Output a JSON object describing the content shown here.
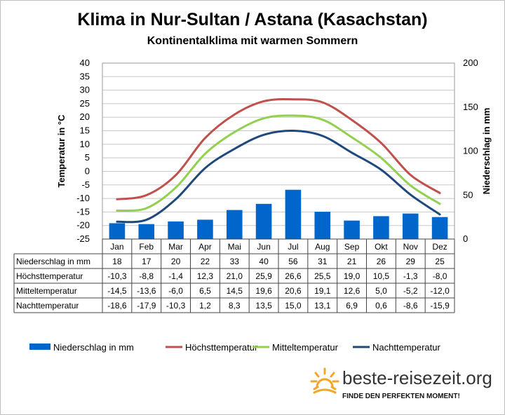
{
  "title": "Klima in Nur-Sultan / Astana (Kasachstan)",
  "subtitle": "Kontinentalklima mit warmen Sommern",
  "brand": {
    "name": "beste-reisezeit.org",
    "slogan": "FINDE DEN PERFEKTEN MOMENT!",
    "logo_icon": "sun-icon"
  },
  "chart_data": {
    "type": "bar+line",
    "categories": [
      "Jan",
      "Feb",
      "Mar",
      "Apr",
      "Mai",
      "Jun",
      "Jul",
      "Aug",
      "Sep",
      "Okt",
      "Nov",
      "Dez"
    ],
    "y_left": {
      "label": "Temperatur in °C",
      "range": [
        -25,
        40
      ],
      "ticks": [
        "-25",
        "-20",
        "-15",
        "-10",
        "-5",
        "0",
        "5",
        "10",
        "15",
        "20",
        "25",
        "30",
        "35",
        "40"
      ]
    },
    "y_right": {
      "label": "Niederschlag in mm",
      "range": [
        0,
        200
      ],
      "ticks": [
        "0",
        "50",
        "100",
        "150",
        "200"
      ]
    },
    "grid": true,
    "legend_position": "bottom",
    "series": [
      {
        "name": "Niederschlag in mm",
        "type": "bar",
        "axis": "right",
        "color": "#0066cc",
        "values": [
          18,
          17,
          20,
          22,
          33,
          40,
          56,
          31,
          21,
          26,
          29,
          25
        ],
        "labels": [
          "18",
          "17",
          "20",
          "22",
          "33",
          "40",
          "56",
          "31",
          "21",
          "26",
          "29",
          "25"
        ]
      },
      {
        "name": "Höchsttemperatur",
        "type": "line",
        "axis": "left",
        "color": "#c0504d",
        "values": [
          -10.3,
          -8.8,
          -1.4,
          12.3,
          21.0,
          25.9,
          26.6,
          25.5,
          19.0,
          10.5,
          -1.3,
          -8.0
        ],
        "labels": [
          "-10,3",
          "-8,8",
          "-1,4",
          "12,3",
          "21,0",
          "25,9",
          "26,6",
          "25,5",
          "19,0",
          "10,5",
          "-1,3",
          "-8,0"
        ]
      },
      {
        "name": "Mitteltemperatur",
        "type": "line",
        "axis": "left",
        "color": "#92d050",
        "values": [
          -14.5,
          -13.6,
          -6.0,
          6.5,
          14.5,
          19.6,
          20.6,
          19.1,
          12.6,
          5.0,
          -5.2,
          -12.0
        ],
        "labels": [
          "-14,5",
          "-13,6",
          "-6,0",
          "6,5",
          "14,5",
          "19,6",
          "20,6",
          "19,1",
          "12,6",
          "5,0",
          "-5,2",
          "-12,0"
        ]
      },
      {
        "name": "Nachttemperatur",
        "type": "line",
        "axis": "left",
        "color": "#1f497d",
        "values": [
          -18.6,
          -17.9,
          -10.3,
          1.2,
          8.3,
          13.5,
          15.0,
          13.1,
          6.9,
          0.6,
          -8.6,
          -15.9
        ],
        "labels": [
          "-18,6",
          "-17,9",
          "-10,3",
          "1,2",
          "8,3",
          "13,5",
          "15,0",
          "13,1",
          "6,9",
          "0,6",
          "-8,6",
          "-15,9"
        ]
      }
    ]
  }
}
